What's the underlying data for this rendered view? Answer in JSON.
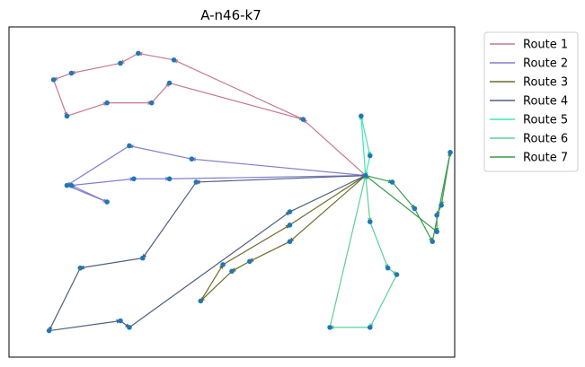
{
  "chart_data": {
    "type": "line",
    "title": "A-n46-k7",
    "xlabel": "",
    "ylabel": "",
    "xlim": [
      0,
      100
    ],
    "ylim": [
      0,
      100
    ],
    "grid": false,
    "legend": {
      "placement": "outside-right-top"
    },
    "depot": [
      80,
      55
    ],
    "node_color": "#1f77b4",
    "series": [
      {
        "name": "Route 1",
        "color": "#c7788f",
        "points": [
          [
            80,
            55
          ],
          [
            66,
            72
          ],
          [
            37,
            90
          ],
          [
            29,
            92
          ],
          [
            25,
            89
          ],
          [
            14,
            86
          ],
          [
            10,
            84
          ],
          [
            13,
            73
          ],
          [
            22,
            77
          ],
          [
            32,
            77
          ],
          [
            36,
            83
          ],
          [
            66,
            72
          ]
        ]
      },
      {
        "name": "Route 2",
        "color": "#7f7fd0",
        "points": [
          [
            80,
            55
          ],
          [
            41,
            60
          ],
          [
            27,
            64
          ],
          [
            13,
            52
          ],
          [
            22,
            47
          ],
          [
            14,
            52
          ],
          [
            28,
            54
          ],
          [
            36,
            54
          ],
          [
            80,
            55
          ]
        ]
      },
      {
        "name": "Route 3",
        "color": "#6b6b28",
        "points": [
          [
            80,
            55
          ],
          [
            63,
            35
          ],
          [
            54,
            29
          ],
          [
            50,
            26
          ],
          [
            43,
            17
          ],
          [
            48,
            28
          ],
          [
            63,
            40
          ],
          [
            80,
            55
          ]
        ]
      },
      {
        "name": "Route 4",
        "color": "#4e5f80",
        "points": [
          [
            80,
            55
          ],
          [
            42,
            53
          ],
          [
            30,
            30
          ],
          [
            16,
            27
          ],
          [
            9,
            8
          ],
          [
            25,
            11
          ],
          [
            27,
            9
          ],
          [
            63,
            44
          ],
          [
            80,
            55
          ]
        ]
      },
      {
        "name": "Route 5",
        "color": "#3ee7b0",
        "points": [
          [
            80,
            55
          ],
          [
            79,
            73
          ],
          [
            81,
            61
          ],
          [
            80,
            55
          ]
        ]
      },
      {
        "name": "Route 6",
        "color": "#5ccf98",
        "points": [
          [
            80,
            55
          ],
          [
            81,
            41
          ],
          [
            85,
            27
          ],
          [
            87,
            25
          ],
          [
            81,
            9
          ],
          [
            72,
            9
          ],
          [
            80,
            55
          ]
        ]
      },
      {
        "name": "Route 7",
        "color": "#3a9a4a",
        "points": [
          [
            80,
            55
          ],
          [
            86,
            53
          ],
          [
            91,
            45
          ],
          [
            95,
            35
          ],
          [
            99,
            62
          ],
          [
            97,
            46
          ],
          [
            96,
            43
          ],
          [
            96,
            38
          ],
          [
            80,
            55
          ]
        ]
      }
    ]
  }
}
